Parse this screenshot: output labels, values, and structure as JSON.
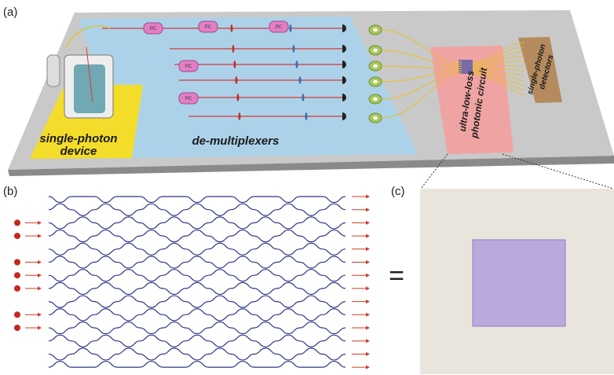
{
  "labels": {
    "a": "(a)",
    "b": "(b)",
    "c": "(c)"
  },
  "panel_a": {
    "device": [
      "single-photon",
      "device"
    ],
    "demux": "de-multiplexers",
    "circuit": [
      "ultra-low-loss",
      "photonic circuit"
    ],
    "detectors": [
      "single-photon",
      "detectors"
    ],
    "pc": "PC"
  },
  "equals": "="
}
